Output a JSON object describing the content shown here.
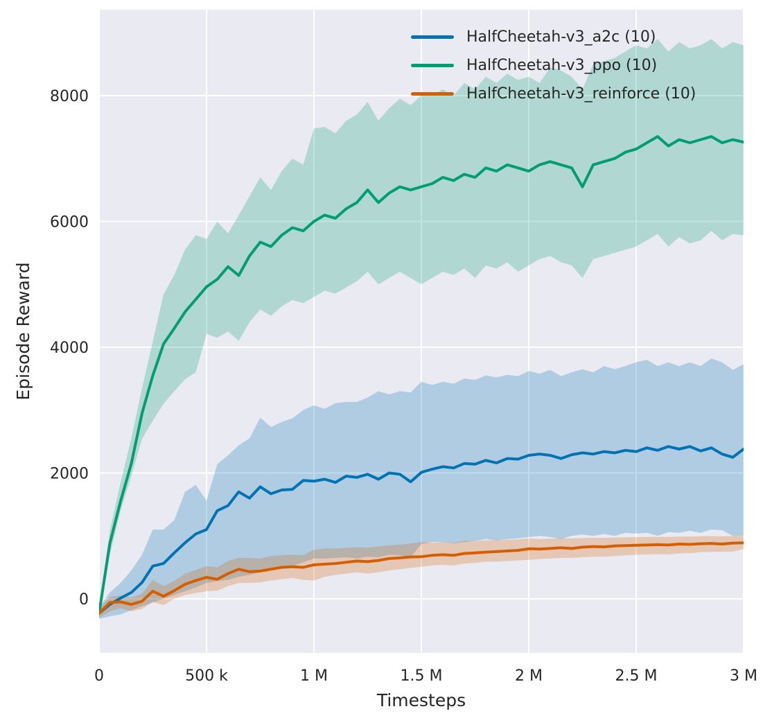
{
  "figure": {
    "background": "#ffffff",
    "plot_background": "#eaeaf2",
    "gridline_color": "#ffffff",
    "text_color": "#262626"
  },
  "chart_data": {
    "type": "line",
    "title": "",
    "xlabel": "Timesteps",
    "ylabel": "Episode Reward",
    "grid": true,
    "legend_position": "upper right inside, no frame",
    "xlim": [
      0,
      3000000
    ],
    "ylim": [
      -860,
      9366
    ],
    "x_tick_values": [
      0,
      500000,
      1000000,
      1500000,
      2000000,
      2500000,
      3000000
    ],
    "x_tick_labels": [
      "0",
      "500 k",
      "1 M",
      "1.5 M",
      "2 M",
      "2.5 M",
      "3 M"
    ],
    "y_tick_values": [
      0,
      2000,
      4000,
      6000,
      8000
    ],
    "y_tick_labels": [
      "0",
      "2000",
      "4000",
      "6000",
      "8000"
    ],
    "band_opacity": 0.25,
    "x": [
      0,
      50000,
      100000,
      150000,
      200000,
      250000,
      300000,
      350000,
      400000,
      450000,
      500000,
      550000,
      600000,
      650000,
      700000,
      750000,
      800000,
      850000,
      900000,
      950000,
      1000000,
      1050000,
      1100000,
      1150000,
      1200000,
      1250000,
      1300000,
      1350000,
      1400000,
      1450000,
      1500000,
      1550000,
      1600000,
      1650000,
      1700000,
      1750000,
      1800000,
      1850000,
      1900000,
      1950000,
      2000000,
      2050000,
      2100000,
      2150000,
      2200000,
      2250000,
      2300000,
      2350000,
      2400000,
      2450000,
      2500000,
      2550000,
      2600000,
      2650000,
      2700000,
      2750000,
      2800000,
      2850000,
      2900000,
      2950000,
      3000000
    ],
    "series": [
      {
        "id": "a2c",
        "label": "HalfCheetah-v3_a2c (10)",
        "color": "#0173b2",
        "mean": [
          -230,
          -90,
          10,
          100,
          260,
          520,
          560,
          730,
          890,
          1030,
          1100,
          1400,
          1480,
          1700,
          1600,
          1780,
          1670,
          1730,
          1740,
          1880,
          1870,
          1900,
          1850,
          1950,
          1930,
          1980,
          1900,
          2000,
          1980,
          1860,
          2010,
          2060,
          2100,
          2080,
          2150,
          2140,
          2200,
          2160,
          2230,
          2220,
          2280,
          2300,
          2280,
          2230,
          2290,
          2320,
          2300,
          2340,
          2320,
          2360,
          2340,
          2400,
          2360,
          2420,
          2380,
          2420,
          2350,
          2400,
          2300,
          2250,
          2380
        ],
        "band_low": [
          -320,
          -280,
          -250,
          -180,
          -120,
          -60,
          0,
          60,
          120,
          180,
          250,
          280,
          300,
          350,
          380,
          420,
          450,
          480,
          520,
          580,
          640,
          640,
          650,
          660,
          640,
          670,
          660,
          700,
          690,
          660,
          870,
          900,
          900,
          880,
          900,
          920,
          950,
          930,
          950,
          960,
          980,
          1000,
          980,
          950,
          1000,
          1020,
          1000,
          1030,
          1000,
          1050,
          1036,
          1050,
          1000,
          1060,
          1050,
          1080,
          1050,
          1100,
          1090,
          1000,
          1003
        ],
        "band_high": [
          -140,
          100,
          250,
          450,
          700,
          1100,
          1100,
          1250,
          1700,
          1810,
          1560,
          2140,
          2280,
          2440,
          2550,
          2880,
          2730,
          2810,
          2870,
          3000,
          3075,
          3020,
          3110,
          3130,
          3130,
          3200,
          3300,
          3250,
          3300,
          3280,
          3450,
          3400,
          3450,
          3420,
          3500,
          3480,
          3550,
          3520,
          3560,
          3540,
          3620,
          3580,
          3640,
          3540,
          3600,
          3650,
          3600,
          3700,
          3650,
          3700,
          3760,
          3800,
          3700,
          3760,
          3700,
          3760,
          3700,
          3820,
          3760,
          3640,
          3730
        ]
      },
      {
        "id": "ppo",
        "label": "HalfCheetah-v3_ppo (10)",
        "color": "#029e73",
        "mean": [
          -230,
          880,
          1550,
          2150,
          2950,
          3550,
          4050,
          4300,
          4560,
          4760,
          4960,
          5080,
          5280,
          5140,
          5450,
          5670,
          5600,
          5780,
          5900,
          5850,
          6000,
          6100,
          6050,
          6200,
          6300,
          6500,
          6300,
          6450,
          6550,
          6500,
          6550,
          6600,
          6700,
          6650,
          6750,
          6700,
          6850,
          6800,
          6900,
          6850,
          6800,
          6900,
          6950,
          6900,
          6850,
          6550,
          6900,
          6950,
          7000,
          7100,
          7150,
          7250,
          7350,
          7200,
          7300,
          7250,
          7300,
          7350,
          7250,
          7300,
          7260
        ],
        "band_low": [
          -300,
          700,
          1400,
          1950,
          2545,
          2830,
          3100,
          3300,
          3490,
          3600,
          4210,
          4150,
          4250,
          4100,
          4400,
          4600,
          4500,
          4650,
          4750,
          4700,
          4800,
          4900,
          4850,
          4950,
          5050,
          5200,
          5000,
          5100,
          5200,
          5100,
          5000,
          5100,
          5200,
          5150,
          5250,
          5100,
          5300,
          5250,
          5350,
          5200,
          5300,
          5400,
          5450,
          5350,
          5300,
          5100,
          5400,
          5450,
          5500,
          5550,
          5600,
          5700,
          5800,
          5600,
          5750,
          5650,
          5700,
          5850,
          5700,
          5800,
          5780
        ],
        "band_high": [
          -150,
          1080,
          1850,
          2550,
          3350,
          4090,
          4840,
          5150,
          5550,
          5780,
          5720,
          6000,
          5810,
          6100,
          6400,
          6700,
          6500,
          6800,
          7000,
          6900,
          7480,
          7500,
          7400,
          7600,
          7700,
          7900,
          7600,
          7800,
          7950,
          7850,
          8000,
          8000,
          8100,
          8000,
          8200,
          8100,
          8300,
          8200,
          8350,
          8250,
          8300,
          8200,
          8450,
          8400,
          8300,
          8100,
          8500,
          8550,
          8600,
          8700,
          8800,
          8750,
          8900,
          8700,
          8850,
          8750,
          8800,
          8900,
          8750,
          8850,
          8800
        ]
      },
      {
        "id": "reinforce",
        "label": "HalfCheetah-v3_reinforce (10)",
        "color": "#d55e00",
        "mean": [
          -230,
          -60,
          -50,
          -90,
          -40,
          120,
          40,
          130,
          230,
          290,
          340,
          310,
          400,
          470,
          430,
          440,
          470,
          500,
          510,
          500,
          540,
          550,
          560,
          580,
          600,
          590,
          610,
          640,
          650,
          665,
          670,
          690,
          700,
          690,
          720,
          730,
          740,
          750,
          760,
          770,
          795,
          790,
          800,
          810,
          800,
          820,
          830,
          825,
          840,
          845,
          850,
          855,
          860,
          855,
          870,
          865,
          875,
          880,
          870,
          885,
          890
        ],
        "band_low": [
          -300,
          -200,
          -150,
          -200,
          -160,
          -50,
          -100,
          0,
          60,
          90,
          120,
          130,
          200,
          250,
          250,
          260,
          290,
          310,
          330,
          300,
          290,
          350,
          380,
          400,
          420,
          400,
          420,
          450,
          470,
          490,
          510,
          530,
          540,
          530,
          560,
          570,
          590,
          590,
          600,
          610,
          620,
          630,
          640,
          650,
          650,
          660,
          670,
          670,
          680,
          690,
          700,
          705,
          710,
          705,
          720,
          725,
          740,
          745,
          745,
          750,
          790
        ],
        "band_high": [
          -160,
          30,
          50,
          20,
          80,
          300,
          200,
          280,
          400,
          460,
          520,
          500,
          600,
          650,
          650,
          640,
          680,
          690,
          700,
          690,
          780,
          800,
          800,
          810,
          820,
          810,
          830,
          850,
          860,
          880,
          900,
          890,
          900,
          890,
          920,
          920,
          930,
          935,
          940,
          945,
          960,
          950,
          955,
          960,
          960,
          965,
          970,
          968,
          975,
          978,
          980,
          982,
          985,
          982,
          990,
          988,
          995,
          996,
          995,
          998,
          1000
        ]
      }
    ]
  }
}
